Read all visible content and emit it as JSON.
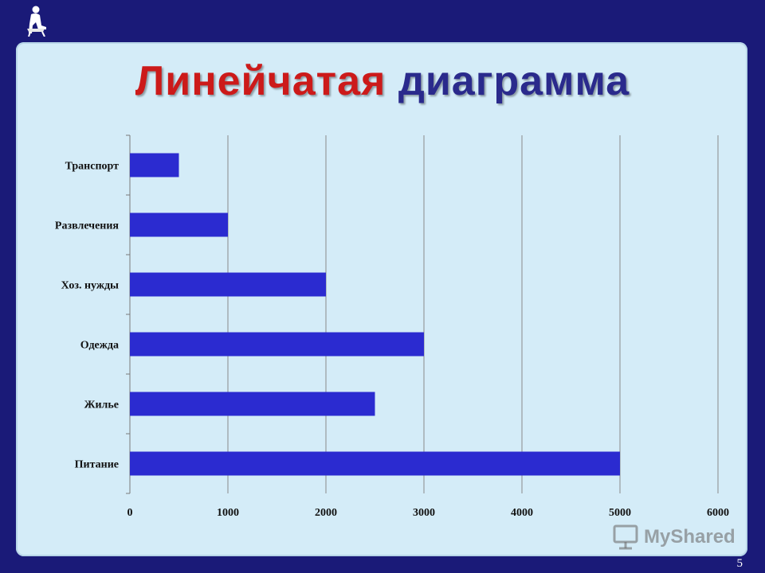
{
  "slide": {
    "title_word1": "Линейчатая",
    "title_word2": "диаграмма",
    "page_number": "5",
    "watermark": "MyShared",
    "colors": {
      "background": "#1a1a78",
      "panel": "#d4ecf8",
      "title_red": "#cc1a1a",
      "title_blue": "#2a2a8c"
    },
    "logo_icon": "seated-figure-icon"
  },
  "chart_data": {
    "type": "bar",
    "orientation": "horizontal",
    "categories": [
      "Транспорт",
      "Развлечения",
      "Хоз. нужды",
      "Одежда",
      "Жилье",
      "Питание"
    ],
    "values": [
      500,
      1000,
      2000,
      3000,
      2500,
      5000
    ],
    "x_ticks": [
      "0",
      "1000",
      "2000",
      "3000",
      "4000",
      "5000",
      "6000"
    ],
    "xlim": [
      0,
      6000
    ],
    "grid": "vertical",
    "bar_color": "#2b2bd0",
    "legend": "none"
  }
}
